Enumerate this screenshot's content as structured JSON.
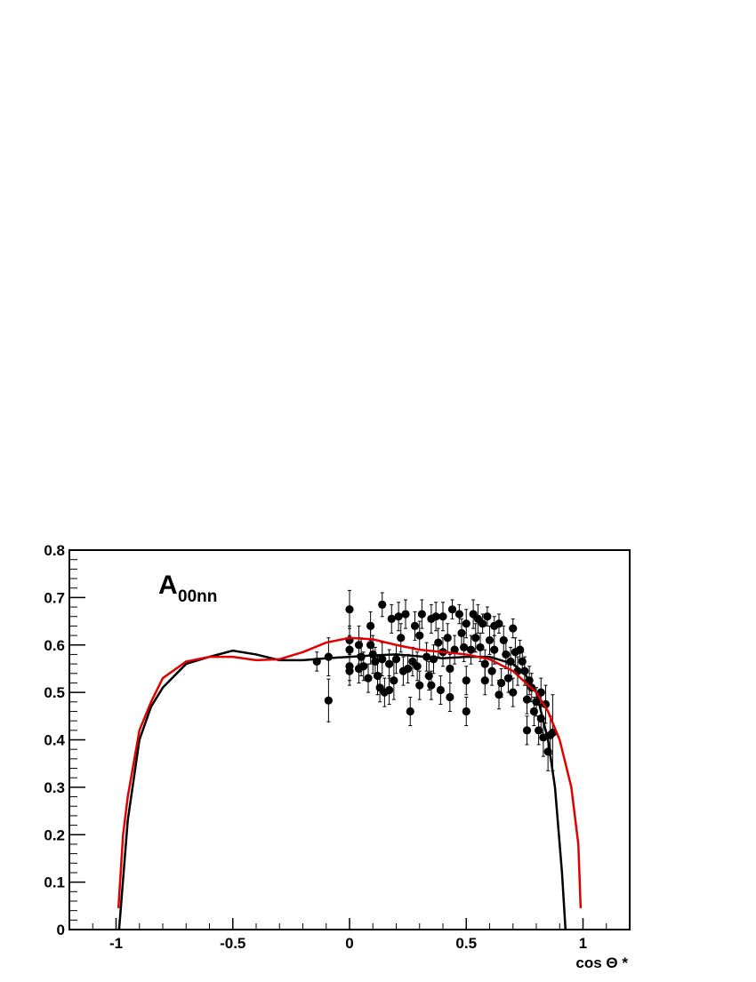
{
  "chart_data": {
    "type": "scatter",
    "annotation": {
      "text": "A",
      "subscript": "00nn"
    },
    "x_label": "cos Θ *",
    "xlim": [
      -1.2,
      1.2
    ],
    "xticks": [
      -1,
      -0.5,
      0,
      0.5,
      1
    ],
    "ylim": [
      0,
      0.8
    ],
    "yticks": [
      0,
      0.1,
      0.2,
      0.3,
      0.4,
      0.5,
      0.6,
      0.7,
      0.8
    ],
    "series": [
      {
        "type": "scatter",
        "color": "#000000",
        "x": [
          -0.14,
          -0.09,
          -0.09,
          0,
          0,
          0,
          0,
          0,
          0.04,
          0.04,
          0.05,
          0.06,
          0.08,
          0.09,
          0.09,
          0.1,
          0.11,
          0.12,
          0.13,
          0.14,
          0.14,
          0.15,
          0.17,
          0.17,
          0.18,
          0.19,
          0.2,
          0.21,
          0.22,
          0.23,
          0.24,
          0.25,
          0.26,
          0.27,
          0.28,
          0.29,
          0.3,
          0.3,
          0.31,
          0.33,
          0.34,
          0.35,
          0.35,
          0.36,
          0.37,
          0.38,
          0.39,
          0.4,
          0.4,
          0.42,
          0.43,
          0.43,
          0.44,
          0.45,
          0.47,
          0.48,
          0.49,
          0.5,
          0.5,
          0.5,
          0.52,
          0.53,
          0.54,
          0.55,
          0.56,
          0.57,
          0.58,
          0.58,
          0.59,
          0.6,
          0.61,
          0.62,
          0.62,
          0.64,
          0.64,
          0.65,
          0.66,
          0.67,
          0.68,
          0.69,
          0.7,
          0.7,
          0.71,
          0.72,
          0.73,
          0.74,
          0.75,
          0.76,
          0.76,
          0.77,
          0.78,
          0.79,
          0.8,
          0.81,
          0.82,
          0.82,
          0.83,
          0.84,
          0.85,
          0.86,
          0.87
        ],
        "values": [
          0.565,
          0.575,
          0.483,
          0.675,
          0.61,
          0.59,
          0.555,
          0.545,
          0.6,
          0.55,
          0.575,
          0.555,
          0.53,
          0.64,
          0.6,
          0.58,
          0.565,
          0.535,
          0.51,
          0.685,
          0.57,
          0.5,
          0.505,
          0.56,
          0.655,
          0.525,
          0.57,
          0.66,
          0.615,
          0.545,
          0.665,
          0.55,
          0.46,
          0.565,
          0.64,
          0.555,
          0.515,
          0.62,
          0.665,
          0.575,
          0.535,
          0.655,
          0.515,
          0.57,
          0.66,
          0.605,
          0.505,
          0.66,
          0.585,
          0.615,
          0.55,
          0.49,
          0.675,
          0.59,
          0.665,
          0.625,
          0.595,
          0.645,
          0.525,
          0.46,
          0.59,
          0.665,
          0.615,
          0.655,
          0.595,
          0.645,
          0.525,
          0.56,
          0.66,
          0.61,
          0.545,
          0.64,
          0.59,
          0.495,
          0.645,
          0.52,
          0.61,
          0.58,
          0.53,
          0.565,
          0.635,
          0.5,
          0.585,
          0.545,
          0.59,
          0.565,
          0.545,
          0.485,
          0.42,
          0.525,
          0.51,
          0.46,
          0.48,
          0.42,
          0.5,
          0.445,
          0.405,
          0.475,
          0.375,
          0.41,
          0.415
        ],
        "errors": [
          0.02,
          0.04,
          0.045,
          0.04,
          0.03,
          0.03,
          0.03,
          0.03,
          0.04,
          0.03,
          0.04,
          0.03,
          0.03,
          0.03,
          0.04,
          0.04,
          0.03,
          0.04,
          0.03,
          0.025,
          0.035,
          0.03,
          0.03,
          0.03,
          0.03,
          0.04,
          0.03,
          0.03,
          0.03,
          0.03,
          0.03,
          0.03,
          0.03,
          0.03,
          0.03,
          0.03,
          0.03,
          0.03,
          0.03,
          0.03,
          0.03,
          0.03,
          0.03,
          0.03,
          0.03,
          0.03,
          0.03,
          0.03,
          0.03,
          0.03,
          0.03,
          0.03,
          0.02,
          0.03,
          0.02,
          0.03,
          0.03,
          0.03,
          0.03,
          0.03,
          0.03,
          0.03,
          0.03,
          0.03,
          0.03,
          0.02,
          0.03,
          0.03,
          0.02,
          0.03,
          0.03,
          0.02,
          0.03,
          0.03,
          0.02,
          0.03,
          0.03,
          0.03,
          0.03,
          0.03,
          0.02,
          0.03,
          0.03,
          0.03,
          0.02,
          0.02,
          0.03,
          0.03,
          0.03,
          0.03,
          0.03,
          0.03,
          0.03,
          0.03,
          0.03,
          0.03,
          0.04,
          0.04,
          0.04,
          0.04,
          0.08
        ]
      },
      {
        "type": "line",
        "color": "#000000",
        "x": [
          -0.987,
          -0.95,
          -0.9,
          -0.85,
          -0.8,
          -0.7,
          -0.6,
          -0.5,
          -0.4,
          -0.3,
          -0.2,
          -0.1,
          0,
          0.1,
          0.2,
          0.3,
          0.4,
          0.5,
          0.6,
          0.7,
          0.75,
          0.8,
          0.85,
          0.88,
          0.91,
          0.925
        ],
        "values": [
          0,
          0.23,
          0.4,
          0.47,
          0.51,
          0.56,
          0.575,
          0.588,
          0.58,
          0.568,
          0.568,
          0.572,
          0.575,
          0.578,
          0.58,
          0.576,
          0.572,
          0.575,
          0.575,
          0.56,
          0.54,
          0.5,
          0.4,
          0.3,
          0.12,
          0
        ]
      },
      {
        "type": "line",
        "color": "#e00000",
        "x": [
          -0.99,
          -0.97,
          -0.95,
          -0.9,
          -0.85,
          -0.8,
          -0.7,
          -0.6,
          -0.5,
          -0.4,
          -0.3,
          -0.2,
          -0.1,
          0,
          0.1,
          0.2,
          0.3,
          0.4,
          0.5,
          0.6,
          0.7,
          0.8,
          0.85,
          0.9,
          0.95,
          0.98,
          0.99
        ],
        "values": [
          0.045,
          0.2,
          0.28,
          0.42,
          0.48,
          0.53,
          0.565,
          0.575,
          0.575,
          0.568,
          0.57,
          0.585,
          0.605,
          0.615,
          0.612,
          0.6,
          0.59,
          0.585,
          0.58,
          0.57,
          0.545,
          0.5,
          0.46,
          0.4,
          0.3,
          0.18,
          0.045
        ]
      }
    ]
  }
}
